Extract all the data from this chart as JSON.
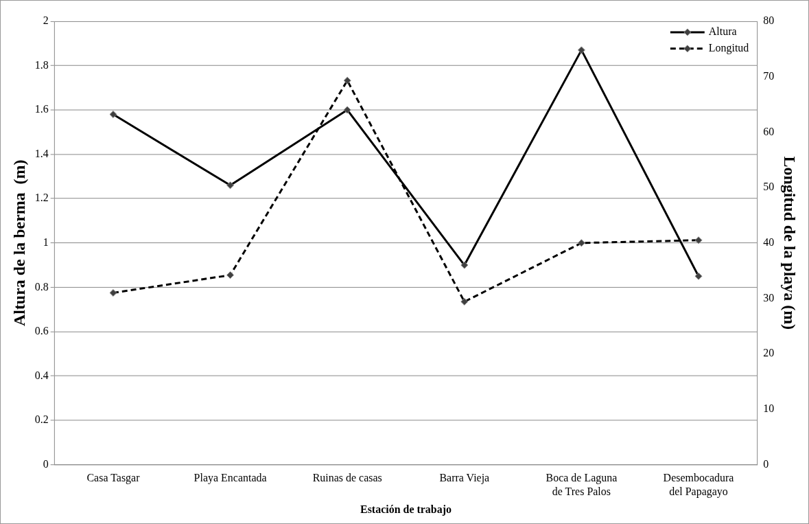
{
  "chart_data": {
    "type": "line",
    "xlabel": "Estación de trabajo",
    "ylabel": "Altura de la berma  (m)",
    "y2label": "Longitud de la playa (m)",
    "categories": [
      "Casa Tasgar",
      "Playa Encantada",
      "Ruinas de casas",
      "Barra Vieja",
      "Boca de Laguna de Tres Palos",
      "Desembocadura del Papagayo"
    ],
    "series": [
      {
        "name": "Altura",
        "color": "#000000",
        "values": [
          1.58,
          1.26,
          1.6,
          0.9,
          1.87,
          0.85
        ],
        "line_style": "solid"
      },
      {
        "name": "Longitud",
        "color": "#000000",
        "axis": "y2",
        "values": [
          31,
          34.2,
          69.3,
          29.4,
          40,
          40.5
        ],
        "line_style": "dashed"
      }
    ],
    "ylim": [
      0,
      2
    ],
    "yticks": [
      0,
      0.2,
      0.4,
      0.6,
      0.8,
      1,
      1.2,
      1.4,
      1.6,
      1.8,
      2
    ],
    "y2lim": [
      0,
      80
    ],
    "y2ticks": [
      0,
      10,
      20,
      30,
      40,
      50,
      60,
      70,
      80
    ],
    "grid": "y",
    "legend": "top right",
    "marker": "diamond"
  }
}
